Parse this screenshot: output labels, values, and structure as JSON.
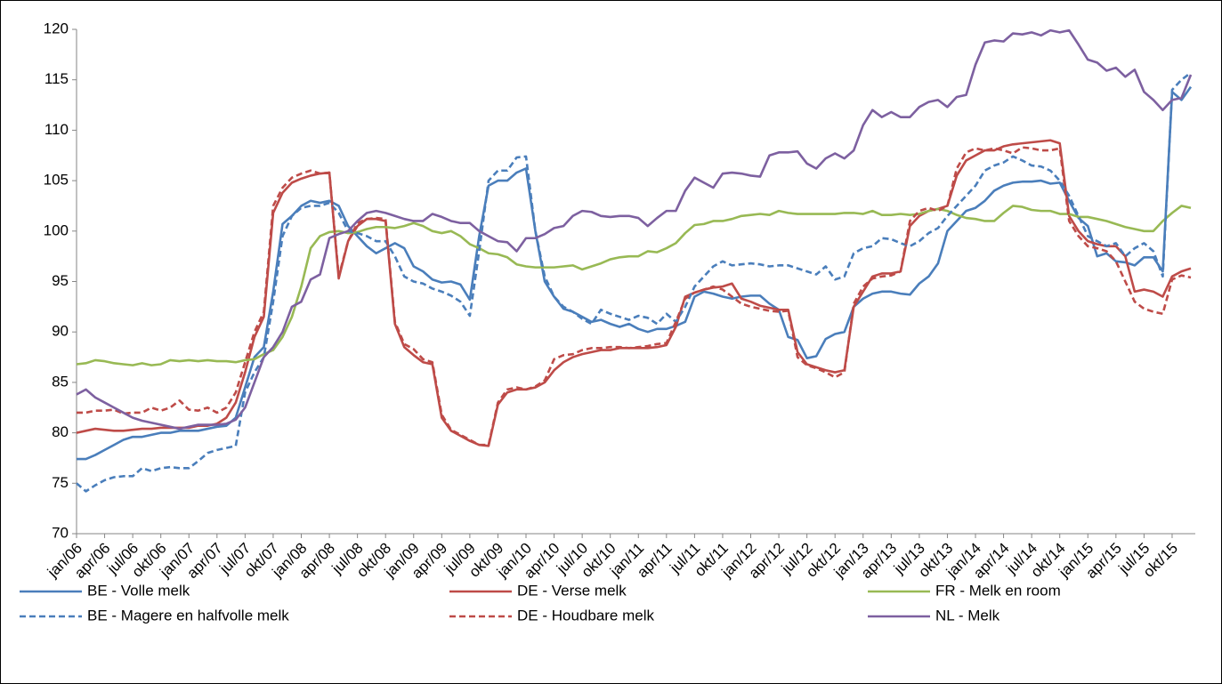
{
  "chart_data": {
    "type": "line",
    "categories": [
      "jan/06",
      null,
      null,
      "apr/06",
      null,
      null,
      "jul/06",
      null,
      null,
      "okt/06",
      null,
      null,
      "jan/07",
      null,
      null,
      "apr/07",
      null,
      null,
      "jul/07",
      null,
      null,
      "okt/07",
      null,
      null,
      "jan/08",
      null,
      null,
      "apr/08",
      null,
      null,
      "jul/08",
      null,
      null,
      "okt/08",
      null,
      null,
      "jan/09",
      null,
      null,
      "apr/09",
      null,
      null,
      "jul/09",
      null,
      null,
      "okt/09",
      null,
      null,
      "jan/10",
      null,
      null,
      "apr/10",
      null,
      null,
      "jul/10",
      null,
      null,
      "okt/10",
      null,
      null,
      "jan/11",
      null,
      null,
      "apr/11",
      null,
      null,
      "jul/11",
      null,
      null,
      "okt/11",
      null,
      null,
      "jan/12",
      null,
      null,
      "apr/12",
      null,
      null,
      "jul/12",
      null,
      null,
      "okt/12",
      null,
      null,
      "jan/13",
      null,
      null,
      "apr/13",
      null,
      null,
      "jul/13",
      null,
      null,
      "okt/13",
      null,
      null,
      "jan/14",
      null,
      null,
      "apr/14",
      null,
      null,
      "jul/14",
      null,
      null,
      "okt/14",
      null,
      null,
      "jan/15",
      null,
      null,
      "apr/15",
      null,
      null,
      "jul/15",
      null,
      null,
      "okt/15",
      null,
      null
    ],
    "series": [
      {
        "name": "BE - Volle melk",
        "color": "#4a7ebb",
        "line_style": "solid",
        "values": [
          77.4,
          77.4,
          77.8,
          78.3,
          78.8,
          79.3,
          79.6,
          79.6,
          79.8,
          80.0,
          80.0,
          80.2,
          80.2,
          80.2,
          80.4,
          80.6,
          80.7,
          81.5,
          84.5,
          87.5,
          88.5,
          94,
          100.7,
          101.5,
          102.5,
          103.0,
          102.8,
          103.0,
          102.5,
          100.5,
          99.5,
          98.5,
          97.8,
          98.3,
          98.8,
          98.3,
          96.5,
          96.0,
          95.2,
          94.9,
          95.0,
          94.7,
          93.2,
          99.5,
          104.5,
          105.0,
          105.0,
          105.8,
          106.2,
          100.0,
          95.0,
          93.5,
          92.3,
          92.0,
          91.5,
          91.0,
          91.2,
          90.8,
          90.5,
          90.8,
          90.3,
          90.0,
          90.3,
          90.3,
          90.6,
          91.0,
          93.5,
          94.0,
          93.8,
          93.5,
          93.3,
          93.5,
          93.6,
          93.6,
          92.8,
          92.2,
          89.5,
          89.2,
          87.4,
          87.6,
          89.3,
          89.8,
          90.0,
          92.5,
          93.3,
          93.8,
          94.0,
          94.0,
          93.8,
          93.7,
          94.8,
          95.5,
          96.8,
          100.0,
          101.0,
          102.0,
          102.3,
          103.0,
          104.0,
          104.5,
          104.8,
          104.9,
          104.9,
          105.0,
          104.7,
          104.8,
          103.0,
          101.3,
          100.5,
          97.5,
          97.8,
          97.0,
          96.9,
          96.6,
          97.4,
          97.4,
          96.0,
          113.8,
          113.0,
          114.3
        ]
      },
      {
        "name": "DE - Verse melk",
        "color": "#be4b48",
        "line_style": "solid",
        "values": [
          80.0,
          80.2,
          80.4,
          80.3,
          80.2,
          80.2,
          80.3,
          80.4,
          80.4,
          80.5,
          80.5,
          80.5,
          80.5,
          80.7,
          80.7,
          80.9,
          81.5,
          83.0,
          86.0,
          89.5,
          91.5,
          101.8,
          103.8,
          104.8,
          105.2,
          105.5,
          105.7,
          105.8,
          95.3,
          99.0,
          100.5,
          101.2,
          101.2,
          101.0,
          90.8,
          88.5,
          87.7,
          87.0,
          86.8,
          81.5,
          80.2,
          79.7,
          79.2,
          78.8,
          78.7,
          82.8,
          84.0,
          84.3,
          84.3,
          84.5,
          85.0,
          86.2,
          87.0,
          87.5,
          87.8,
          88.0,
          88.2,
          88.2,
          88.4,
          88.4,
          88.4,
          88.4,
          88.5,
          88.7,
          90.5,
          93.5,
          93.9,
          94.2,
          94.4,
          94.5,
          94.8,
          93.3,
          93.0,
          92.6,
          92.4,
          92.2,
          92.2,
          88.0,
          86.8,
          86.5,
          86.2,
          86.0,
          86.2,
          92.5,
          94.0,
          95.5,
          95.8,
          95.8,
          96.0,
          100.5,
          101.5,
          102.0,
          102.2,
          102.5,
          105.5,
          107.0,
          107.5,
          108.0,
          108.0,
          108.4,
          108.6,
          108.7,
          108.8,
          108.9,
          109.0,
          108.7,
          101.5,
          100.0,
          99.0,
          98.7,
          98.5,
          98.5,
          97.5,
          94.0,
          94.2,
          94.0,
          93.5,
          95.5,
          96.0,
          96.3
        ]
      },
      {
        "name": "FR - Melk en room",
        "color": "#98b954",
        "line_style": "solid",
        "values": [
          86.8,
          86.9,
          87.2,
          87.1,
          86.9,
          86.8,
          86.7,
          86.9,
          86.7,
          86.8,
          87.2,
          87.1,
          87.2,
          87.1,
          87.2,
          87.1,
          87.1,
          87.0,
          87.2,
          87.3,
          87.8,
          88.2,
          89.5,
          91.5,
          94.5,
          98.3,
          99.5,
          99.9,
          100.0,
          99.8,
          99.9,
          100.2,
          100.4,
          100.4,
          100.3,
          100.5,
          100.8,
          100.5,
          100.0,
          99.8,
          100.0,
          99.5,
          98.7,
          98.3,
          97.8,
          97.7,
          97.4,
          96.7,
          96.5,
          96.4,
          96.4,
          96.4,
          96.5,
          96.6,
          96.2,
          96.5,
          96.8,
          97.2,
          97.4,
          97.5,
          97.5,
          98.0,
          97.9,
          98.3,
          98.8,
          99.8,
          100.6,
          100.7,
          101.0,
          101.0,
          101.2,
          101.5,
          101.6,
          101.7,
          101.6,
          102.0,
          101.8,
          101.7,
          101.7,
          101.7,
          101.7,
          101.7,
          101.8,
          101.8,
          101.7,
          102.0,
          101.6,
          101.6,
          101.7,
          101.6,
          101.7,
          102.0,
          102.2,
          102.0,
          101.6,
          101.3,
          101.2,
          101.0,
          101.0,
          101.8,
          102.5,
          102.4,
          102.1,
          102.0,
          102.0,
          101.7,
          101.7,
          101.4,
          101.4,
          101.2,
          101.0,
          100.7,
          100.4,
          100.2,
          100.0,
          100.0,
          101.0,
          101.8,
          102.5,
          102.3
        ]
      },
      {
        "name": "BE - Magere en halfvolle melk",
        "color": "#4a7ebb",
        "line_style": "dashed",
        "values": [
          75.0,
          74.2,
          74.8,
          75.3,
          75.6,
          75.7,
          75.7,
          76.5,
          76.2,
          76.5,
          76.6,
          76.5,
          76.5,
          77.2,
          78.0,
          78.3,
          78.5,
          78.7,
          84.0,
          86.0,
          87.5,
          93.0,
          99.5,
          101.5,
          102.3,
          102.5,
          102.5,
          102.8,
          101.8,
          100.0,
          99.8,
          99.5,
          99.0,
          99.0,
          97.5,
          95.5,
          95.0,
          94.8,
          94.3,
          94.0,
          93.6,
          93.0,
          91.6,
          98.0,
          105.0,
          106.0,
          106.0,
          107.3,
          107.4,
          100.0,
          95.5,
          93.5,
          92.5,
          92.0,
          91.3,
          90.8,
          92.2,
          91.8,
          91.5,
          91.2,
          91.6,
          91.4,
          90.8,
          91.8,
          91.0,
          92.5,
          94.5,
          95.5,
          96.5,
          97.0,
          96.6,
          96.7,
          96.8,
          96.7,
          96.5,
          96.6,
          96.6,
          96.3,
          96.0,
          95.7,
          96.5,
          95.2,
          95.5,
          97.8,
          98.3,
          98.5,
          99.3,
          99.2,
          98.8,
          98.5,
          99.0,
          99.8,
          100.3,
          101.5,
          102.5,
          103.5,
          104.5,
          106.0,
          106.5,
          106.8,
          107.4,
          107.0,
          106.5,
          106.4,
          106.0,
          105.0,
          103.5,
          101.5,
          99.5,
          99.0,
          98.5,
          98.8,
          97.5,
          98.3,
          98.8,
          98.0,
          95.5,
          114.0,
          115.0,
          115.7
        ]
      },
      {
        "name": "DE - Houdbare melk",
        "color": "#be4b48",
        "line_style": "dashed",
        "values": [
          82.0,
          82.0,
          82.2,
          82.2,
          82.3,
          81.9,
          82.0,
          82.0,
          82.5,
          82.2,
          82.5,
          83.2,
          82.3,
          82.2,
          82.5,
          82.0,
          82.5,
          84.0,
          87.0,
          90.0,
          92.0,
          102.5,
          104.3,
          105.3,
          105.7,
          106.0,
          105.7,
          105.8,
          95.5,
          99.0,
          100.8,
          101.2,
          101.3,
          101.2,
          91.0,
          88.8,
          88.3,
          87.3,
          87.0,
          81.8,
          80.3,
          79.8,
          79.3,
          78.8,
          78.8,
          83.0,
          84.3,
          84.5,
          84.3,
          84.6,
          85.2,
          87.3,
          87.7,
          87.8,
          88.2,
          88.4,
          88.4,
          88.5,
          88.5,
          88.4,
          88.5,
          88.6,
          88.8,
          88.9,
          91.0,
          93.3,
          93.9,
          94.2,
          94.5,
          94.2,
          93.5,
          92.8,
          92.5,
          92.3,
          92.1,
          92.0,
          92.1,
          87.5,
          86.7,
          86.4,
          86.0,
          85.5,
          86.0,
          92.8,
          94.5,
          95.3,
          95.5,
          95.6,
          96.0,
          101.0,
          102.0,
          102.3,
          102.0,
          102.5,
          106.2,
          107.8,
          108.2,
          108.0,
          108.2,
          108.0,
          107.7,
          108.3,
          108.2,
          108.0,
          108.0,
          108.2,
          101.0,
          99.5,
          98.5,
          98.3,
          98.0,
          97.0,
          95.0,
          93.0,
          92.3,
          92.0,
          91.8,
          95.2,
          95.6,
          95.4
        ]
      },
      {
        "name": "NL - Melk",
        "color": "#7d60a0",
        "line_style": "solid",
        "values": [
          83.8,
          84.3,
          83.5,
          83.0,
          82.5,
          82.0,
          81.5,
          81.2,
          81.0,
          80.8,
          80.6,
          80.4,
          80.6,
          80.8,
          80.8,
          80.8,
          80.9,
          81.3,
          82.5,
          85.0,
          87.5,
          88.5,
          90.0,
          92.5,
          93.0,
          95.2,
          95.7,
          99.3,
          99.7,
          100.0,
          101.0,
          101.8,
          102.0,
          101.8,
          101.5,
          101.2,
          101.0,
          101.0,
          101.7,
          101.4,
          101.0,
          100.8,
          100.8,
          100.0,
          99.5,
          99.0,
          98.9,
          98.0,
          99.3,
          99.3,
          99.7,
          100.3,
          100.5,
          101.5,
          102.0,
          101.9,
          101.5,
          101.4,
          101.5,
          101.5,
          101.3,
          100.5,
          101.3,
          102.0,
          102.0,
          104.0,
          105.3,
          104.8,
          104.3,
          105.7,
          105.8,
          105.7,
          105.5,
          105.4,
          107.5,
          107.8,
          107.8,
          107.9,
          106.7,
          106.2,
          107.2,
          107.7,
          107.2,
          108.0,
          110.5,
          112.0,
          111.3,
          111.8,
          111.3,
          111.3,
          112.3,
          112.8,
          113.0,
          112.3,
          113.3,
          113.5,
          116.5,
          118.7,
          118.9,
          118.8,
          119.6,
          119.5,
          119.7,
          119.4,
          119.9,
          119.7,
          119.9,
          118.5,
          117.0,
          116.7,
          115.9,
          116.2,
          115.3,
          116.0,
          113.8,
          113.0,
          112.0,
          113.0,
          113.2,
          115.5
        ]
      }
    ],
    "ylim": [
      70,
      120
    ],
    "yticks": [
      70,
      75,
      80,
      85,
      90,
      95,
      100,
      105,
      110,
      115,
      120
    ],
    "grid": false,
    "legend": "bottom"
  }
}
